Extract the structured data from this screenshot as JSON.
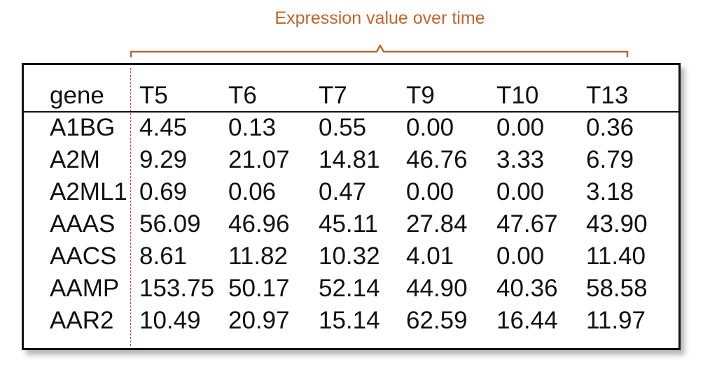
{
  "caption": "Expression value over time",
  "colors": {
    "caption": "#c0652c",
    "brace": "#c0652c",
    "divider": "#e0434f",
    "text": "#111111"
  },
  "table": {
    "header": [
      "gene",
      "T5",
      "T6",
      "T7",
      "T9",
      "T10",
      "T13"
    ],
    "rows": [
      [
        "A1BG",
        "4.45",
        "0.13",
        "0.55",
        "0.00",
        "0.00",
        "0.36"
      ],
      [
        "A2M",
        "9.29",
        "21.07",
        "14.81",
        "46.76",
        "3.33",
        "6.79"
      ],
      [
        "A2ML1",
        "0.69",
        "0.06",
        "0.47",
        "0.00",
        "0.00",
        "3.18"
      ],
      [
        "AAAS",
        "56.09",
        "46.96",
        "45.11",
        "27.84",
        "47.67",
        "43.90"
      ],
      [
        "AACS",
        "8.61",
        "11.82",
        "10.32",
        "4.01",
        "0.00",
        "11.40"
      ],
      [
        "AAMP",
        "153.75",
        "50.17",
        "52.14",
        "44.90",
        "40.36",
        "58.58"
      ],
      [
        "AAR2",
        "10.49",
        "20.97",
        "15.14",
        "62.59",
        "16.44",
        "11.97"
      ]
    ]
  }
}
